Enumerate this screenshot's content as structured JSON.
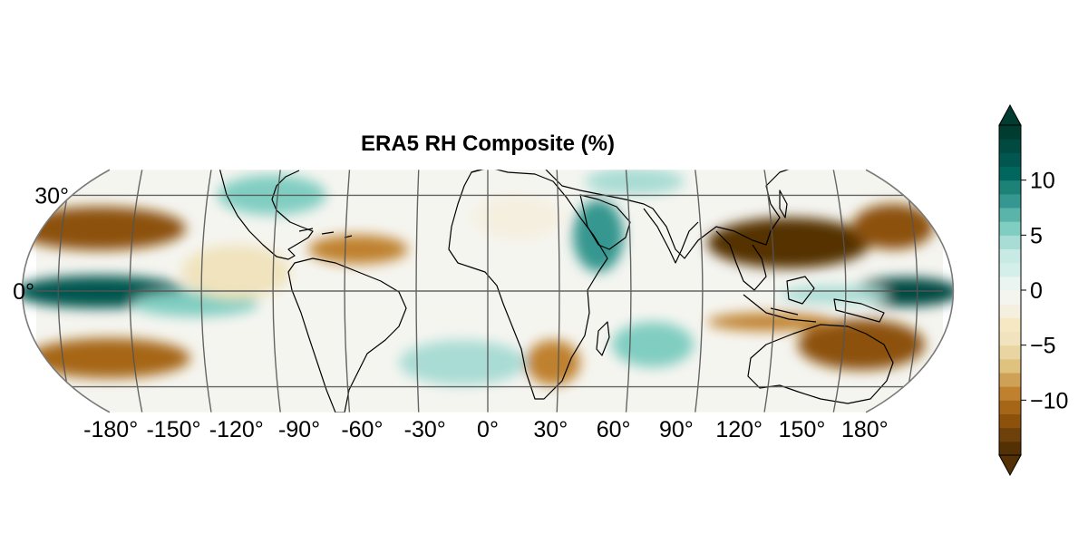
{
  "figure": {
    "title": "ERA5 RH Composite (%)"
  },
  "map": {
    "projection": "equal-earth",
    "center_longitude": 0,
    "lat_range": [
      -38,
      38
    ],
    "longitude_ticks": [
      {
        "value": -180,
        "label": "-180°"
      },
      {
        "value": -150,
        "label": "-150°"
      },
      {
        "value": -120,
        "label": "-120°"
      },
      {
        "value": -90,
        "label": "-90°"
      },
      {
        "value": -60,
        "label": "-60°"
      },
      {
        "value": -30,
        "label": "-30°"
      },
      {
        "value": 0,
        "label": "0°"
      },
      {
        "value": 30,
        "label": "30°"
      },
      {
        "value": 60,
        "label": "60°"
      },
      {
        "value": 90,
        "label": "90°"
      },
      {
        "value": 120,
        "label": "120°"
      },
      {
        "value": 150,
        "label": "150°"
      },
      {
        "value": 180,
        "label": "180°"
      }
    ],
    "latitude_ticks": [
      {
        "value": 30,
        "label": "30°"
      },
      {
        "value": 0,
        "label": "0°"
      }
    ],
    "gridline_color": "#555555",
    "coastline_color": "#000000"
  },
  "colorbar": {
    "colormap": "BrBG",
    "range": [
      -15,
      15
    ],
    "extend": "both",
    "ticks": [
      {
        "value": 10,
        "label": "10"
      },
      {
        "value": 5,
        "label": "5"
      },
      {
        "value": 0,
        "label": "0"
      },
      {
        "value": -5,
        "label": "−5"
      },
      {
        "value": -10,
        "label": "−10"
      }
    ],
    "levels": [
      {
        "from": -15.0,
        "to": -13.75,
        "color": "#543005"
      },
      {
        "from": -13.75,
        "to": -12.5,
        "color": "#6e410b"
      },
      {
        "from": -12.5,
        "to": -11.25,
        "color": "#8c510a"
      },
      {
        "from": -11.25,
        "to": -10.0,
        "color": "#a66617"
      },
      {
        "from": -10.0,
        "to": -8.75,
        "color": "#bf812d"
      },
      {
        "from": -8.75,
        "to": -7.5,
        "color": "#cfa156"
      },
      {
        "from": -7.5,
        "to": -6.25,
        "color": "#dfc27d"
      },
      {
        "from": -6.25,
        "to": -5.0,
        "color": "#e9d5a2"
      },
      {
        "from": -5.0,
        "to": -3.75,
        "color": "#f0e3bd"
      },
      {
        "from": -3.75,
        "to": -2.5,
        "color": "#f6e8c3"
      },
      {
        "from": -2.5,
        "to": -1.25,
        "color": "#f5efe0"
      },
      {
        "from": -1.25,
        "to": 0.0,
        "color": "#f5f5f0"
      },
      {
        "from": 0.0,
        "to": 1.25,
        "color": "#eaf5f2"
      },
      {
        "from": 1.25,
        "to": 2.5,
        "color": "#d4efe9"
      },
      {
        "from": 2.5,
        "to": 3.75,
        "color": "#c7eae5"
      },
      {
        "from": 3.75,
        "to": 5.0,
        "color": "#a9dcd4"
      },
      {
        "from": 5.0,
        "to": 6.25,
        "color": "#80cdc1"
      },
      {
        "from": 6.25,
        "to": 7.5,
        "color": "#5ab4a9"
      },
      {
        "from": 7.5,
        "to": 8.75,
        "color": "#35978f"
      },
      {
        "from": 8.75,
        "to": 10.0,
        "color": "#1c8278"
      },
      {
        "from": 10.0,
        "to": 11.25,
        "color": "#01665e"
      },
      {
        "from": 11.25,
        "to": 12.5,
        "color": "#01564f"
      },
      {
        "from": 12.5,
        "to": 13.75,
        "color": "#014a42"
      },
      {
        "from": 13.75,
        "to": 15.0,
        "color": "#003c30"
      }
    ]
  }
}
